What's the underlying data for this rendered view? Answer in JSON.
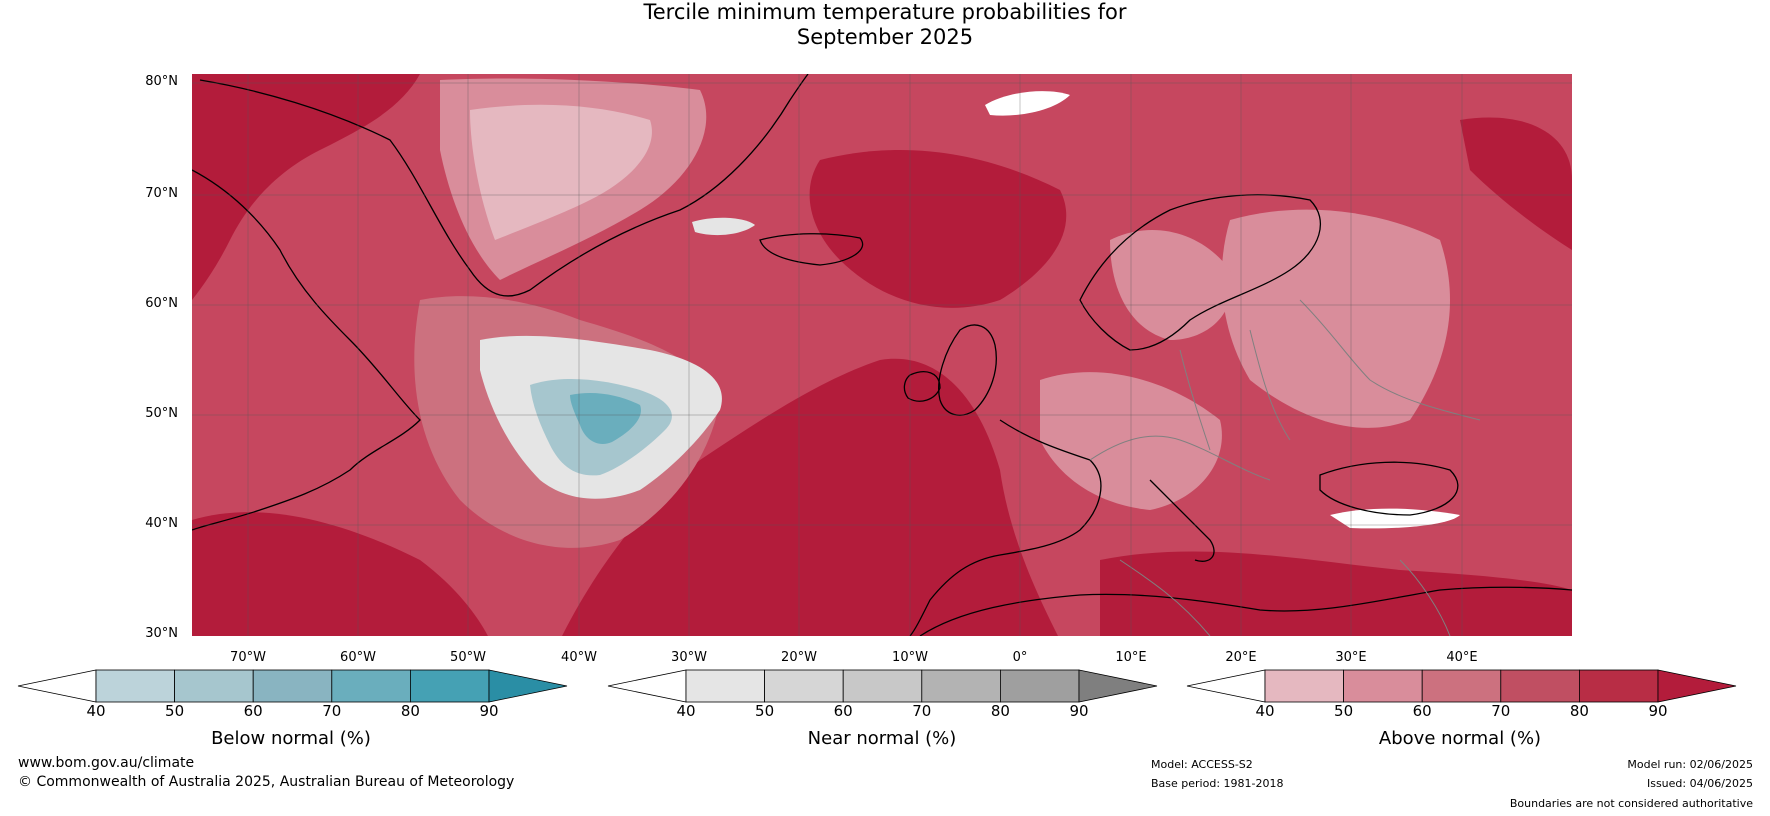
{
  "title": {
    "line1": "Tercile minimum temperature probabilities for",
    "line2": "September 2025"
  },
  "map": {
    "lat_labels": [
      "80°N",
      "70°N",
      "60°N",
      "50°N",
      "40°N",
      "30°N"
    ],
    "lon_labels": [
      "70°W",
      "60°W",
      "50°W",
      "40°W",
      "30°W",
      "20°W",
      "10°W",
      "0°",
      "10°E",
      "20°E",
      "30°E",
      "40°E"
    ],
    "colors": {
      "above_dominant": "#b31c3b",
      "ocean_background": "#c6475f",
      "coastline": "#000000",
      "borders": "#808080"
    }
  },
  "colorbars": [
    {
      "label": "Below normal (%)",
      "ticks": [
        "40",
        "50",
        "60",
        "70",
        "80",
        "90"
      ],
      "colors": [
        "#ffffff",
        "#bcd3da",
        "#a6c6ce",
        "#89b4c1",
        "#6aaebd",
        "#45a1b4",
        "#2a8ea5"
      ]
    },
    {
      "label": "Near normal (%)",
      "ticks": [
        "40",
        "50",
        "60",
        "70",
        "80",
        "90"
      ],
      "colors": [
        "#ffffff",
        "#e5e5e5",
        "#d6d6d6",
        "#c8c8c8",
        "#b3b3b3",
        "#9f9f9f",
        "#7f7f7f"
      ]
    },
    {
      "label": "Above normal (%)",
      "ticks": [
        "40",
        "50",
        "60",
        "70",
        "80",
        "90"
      ],
      "colors": [
        "#ffffff",
        "#e5b8c0",
        "#d98d9b",
        "#cc717f",
        "#c04f62",
        "#b82d45",
        "#b31c3b"
      ]
    }
  ],
  "footer": {
    "website": "www.bom.gov.au/climate",
    "copyright": "© Commonwealth of Australia 2025, Australian Bureau of Meteorology",
    "model": "Model: ACCESS-S2",
    "base_period": "Base period: 1981-2018",
    "model_run": "Model run: 02/06/2025",
    "issued": "Issued: 04/06/2025",
    "disclaimer": "Boundaries are not considered authoritative"
  }
}
